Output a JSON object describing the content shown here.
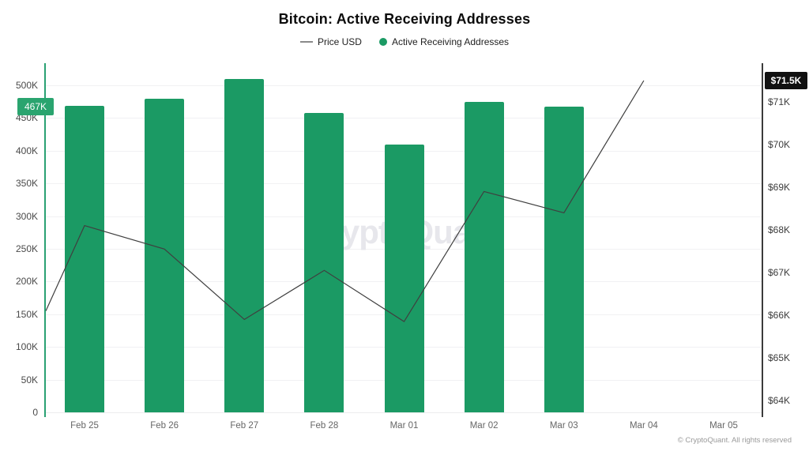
{
  "title": "Bitcoin: Active Receiving Addresses",
  "legend": {
    "price": {
      "label": "Price USD",
      "symbol": "line-dash",
      "color": "#8a8a8a"
    },
    "addresses": {
      "label": "Active Receiving Addresses",
      "symbol": "dot",
      "color": "#1b9a64"
    }
  },
  "watermark": "CryptoQuant",
  "footer": {
    "copyright": "© CryptoQuant. All rights reserved"
  },
  "badges": {
    "left": {
      "text": "467K",
      "bg": "#2aa46f",
      "value": 467000
    },
    "right": {
      "text": "$71.5K",
      "bg": "#111111",
      "value": 71500
    }
  },
  "chart_data": {
    "type": "combo",
    "categories": [
      "Feb 25",
      "Feb 26",
      "Feb 27",
      "Feb 28",
      "Mar 01",
      "Mar 02",
      "Mar 03",
      "Mar 04",
      "Mar 05"
    ],
    "series": [
      {
        "name": "Active Receiving Addresses",
        "type": "bar",
        "axis": "left",
        "color": "#1b9a64",
        "values": [
          469000,
          479000,
          510000,
          458000,
          409000,
          475000,
          467000,
          null,
          null
        ]
      },
      {
        "name": "Price USD",
        "type": "line",
        "axis": "right",
        "color": "#3f3f3f",
        "edge_start_value": 66100,
        "values": [
          68100,
          67550,
          65900,
          67050,
          65850,
          68900,
          68400,
          71500,
          null
        ]
      }
    ],
    "left_axis": {
      "title": "Active Receiving Addresses",
      "range": [
        0,
        534000
      ],
      "ticks": [
        {
          "label": "500K",
          "value": 500000
        },
        {
          "label": "450K",
          "value": 450000
        },
        {
          "label": "400K",
          "value": 400000
        },
        {
          "label": "350K",
          "value": 350000
        },
        {
          "label": "300K",
          "value": 300000
        },
        {
          "label": "250K",
          "value": 250000
        },
        {
          "label": "200K",
          "value": 200000
        },
        {
          "label": "150K",
          "value": 150000
        },
        {
          "label": "100K",
          "value": 100000
        },
        {
          "label": "50K",
          "value": 50000
        },
        {
          "label": "0",
          "value": 0
        }
      ]
    },
    "right_axis": {
      "title": "Price USD",
      "range": [
        63700,
        72200
      ],
      "ticks": [
        {
          "label": "$71K",
          "value": 71000
        },
        {
          "label": "$70K",
          "value": 70000
        },
        {
          "label": "$69K",
          "value": 69000
        },
        {
          "label": "$68K",
          "value": 68000
        },
        {
          "label": "$67K",
          "value": 67000
        },
        {
          "label": "$66K",
          "value": 66000
        },
        {
          "label": "$65K",
          "value": 65000
        },
        {
          "label": "$64K",
          "value": 64000
        }
      ]
    },
    "grid": true,
    "legend_position": "top"
  }
}
